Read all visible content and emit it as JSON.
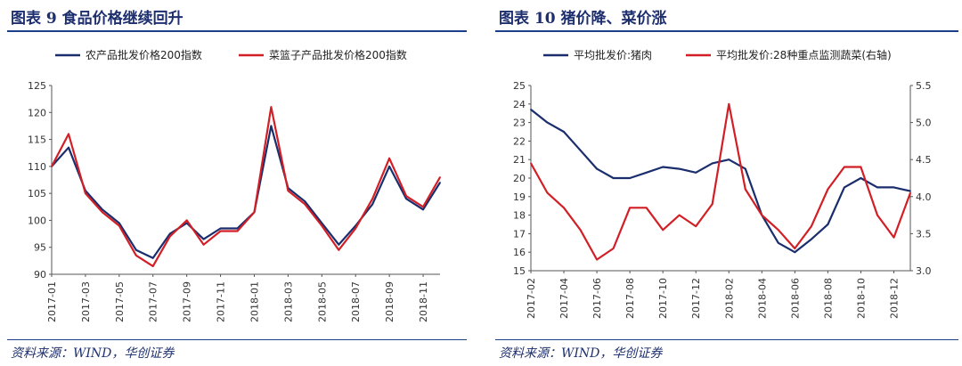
{
  "figures": [
    {
      "title": "图表 9    食品价格继续回升",
      "source": "资料来源：WIND，华创证券"
    },
    {
      "title": "图表 10    猪价降、菜价涨",
      "source": "资料来源：WIND，华创证券"
    }
  ],
  "chart_data": [
    {
      "type": "line",
      "x_tick_labels": [
        "2017-01",
        "2017-03",
        "2017-05",
        "2017-07",
        "2017-09",
        "2017-11",
        "2018-01",
        "2018-03",
        "2018-05",
        "2018-07",
        "2018-09",
        "2018-11"
      ],
      "x": [
        "2017-01",
        "2017-02",
        "2017-03",
        "2017-04",
        "2017-05",
        "2017-06",
        "2017-07",
        "2017-08",
        "2017-09",
        "2017-10",
        "2017-11",
        "2017-12",
        "2018-01",
        "2018-02",
        "2018-03",
        "2018-04",
        "2018-05",
        "2018-06",
        "2018-07",
        "2018-08",
        "2018-09",
        "2018-10",
        "2018-11",
        "2018-12"
      ],
      "ylim": [
        90,
        125
      ],
      "y_ticks": [
        90,
        95,
        100,
        105,
        110,
        115,
        120,
        125
      ],
      "legend_position": "top",
      "series": [
        {
          "name": "农产品批发价格200指数",
          "color": "#1a2d6d",
          "values": [
            110,
            113.5,
            105.5,
            102,
            99.5,
            94.5,
            93,
            97.5,
            99.5,
            96.5,
            98.5,
            98.5,
            101.5,
            117.5,
            106,
            103.5,
            99.5,
            95.5,
            99,
            103,
            110,
            104,
            102,
            107
          ]
        },
        {
          "name": "菜篮子产品批发价格200指数",
          "color": "#d21f26",
          "values": [
            110,
            116,
            105,
            101.5,
            99,
            93.5,
            91.5,
            97,
            100,
            95.5,
            98,
            98,
            101.5,
            121,
            105.5,
            103,
            99,
            94.5,
            98.5,
            104,
            111.5,
            104.5,
            102.5,
            108
          ]
        }
      ]
    },
    {
      "type": "line",
      "x_tick_labels": [
        "2017-02",
        "2017-04",
        "2017-06",
        "2017-08",
        "2017-10",
        "2017-12",
        "2018-02",
        "2018-04",
        "2018-06",
        "2018-08",
        "2018-10",
        "2018-12"
      ],
      "x": [
        "2017-02",
        "2017-03",
        "2017-04",
        "2017-05",
        "2017-06",
        "2017-07",
        "2017-08",
        "2017-09",
        "2017-10",
        "2017-11",
        "2017-12",
        "2018-01",
        "2018-02",
        "2018-03",
        "2018-04",
        "2018-05",
        "2018-06",
        "2018-07",
        "2018-08",
        "2018-09",
        "2018-10",
        "2018-11",
        "2018-12",
        "2019-01"
      ],
      "ylim_left": [
        15,
        25
      ],
      "y_ticks_left": [
        15,
        16,
        17,
        18,
        19,
        20,
        21,
        22,
        23,
        24,
        25
      ],
      "ylim_right": [
        3.0,
        5.5
      ],
      "y_ticks_right": [
        "3.0",
        "3.5",
        "4.0",
        "4.5",
        "5.0",
        "5.5"
      ],
      "legend_position": "top",
      "series": [
        {
          "name": "平均批发价:猪肉",
          "color": "#1a2d6d",
          "axis": "left",
          "values": [
            23.7,
            23,
            22.5,
            21.5,
            20.5,
            20,
            20,
            20.3,
            20.6,
            20.5,
            20.3,
            20.8,
            21,
            20.5,
            18,
            16.5,
            16,
            16.7,
            17.5,
            19.5,
            20,
            19.5,
            19.5,
            19.3
          ]
        },
        {
          "name": "平均批发价:28种重点监测蔬菜(右轴)",
          "color": "#d21f26",
          "axis": "right",
          "values": [
            4.45,
            4.05,
            3.85,
            3.55,
            3.15,
            3.3,
            3.85,
            3.85,
            3.55,
            3.75,
            3.6,
            3.9,
            5.25,
            4.1,
            3.75,
            3.55,
            3.3,
            3.6,
            4.1,
            4.4,
            4.4,
            3.75,
            3.45,
            4.05
          ]
        }
      ]
    }
  ]
}
